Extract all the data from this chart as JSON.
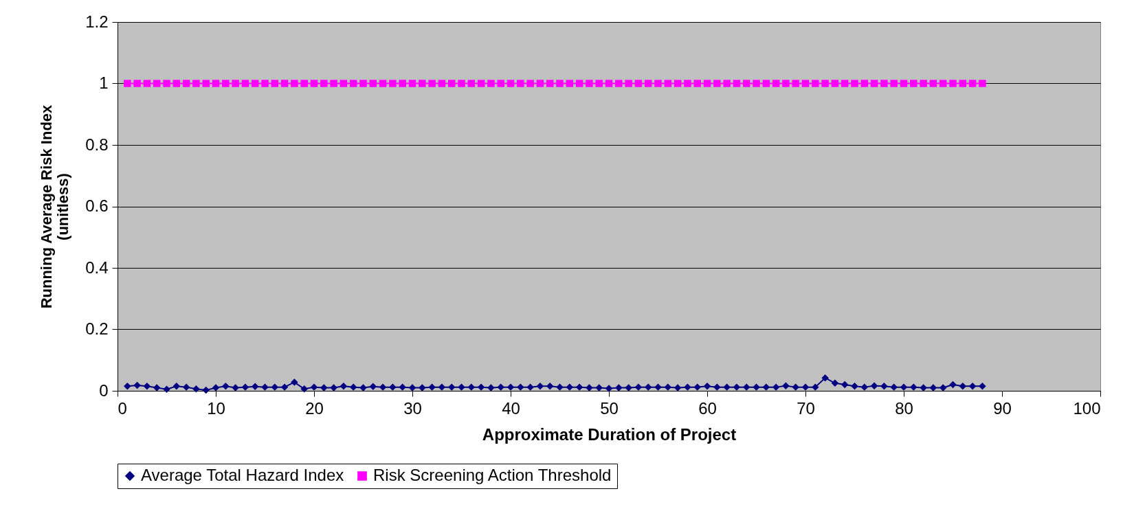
{
  "chart_data": {
    "type": "line",
    "xlabel": "Approximate Duration of Project",
    "ylabel": "Running Average Risk Index (unitless)",
    "xlim": [
      0,
      100
    ],
    "xticks": [
      0,
      10,
      20,
      30,
      40,
      50,
      60,
      70,
      80,
      90,
      100
    ],
    "ylim": [
      0,
      1.2
    ],
    "yticks": [
      0,
      0.2,
      0.4,
      0.6,
      0.8,
      1,
      1.2
    ],
    "grid": "y",
    "legend": "bottom",
    "line_style": "solid",
    "x": [
      1,
      2,
      3,
      4,
      5,
      6,
      7,
      8,
      9,
      10,
      11,
      12,
      13,
      14,
      15,
      16,
      17,
      18,
      19,
      20,
      21,
      22,
      23,
      24,
      25,
      26,
      27,
      28,
      29,
      30,
      31,
      32,
      33,
      34,
      35,
      36,
      37,
      38,
      39,
      40,
      41,
      42,
      43,
      44,
      45,
      46,
      47,
      48,
      49,
      50,
      51,
      52,
      53,
      54,
      55,
      56,
      57,
      58,
      59,
      60,
      61,
      62,
      63,
      64,
      65,
      66,
      67,
      68,
      69,
      70,
      71,
      72,
      73,
      74,
      75,
      76,
      77,
      78,
      79,
      80,
      81,
      82,
      83,
      84,
      85,
      86,
      87,
      88
    ],
    "series": [
      {
        "name": "Average Total Hazard Index",
        "color": "#000080",
        "marker": "diamond",
        "values": [
          0.015,
          0.018,
          0.015,
          0.01,
          0.005,
          0.015,
          0.012,
          0.006,
          0.002,
          0.01,
          0.015,
          0.01,
          0.012,
          0.014,
          0.012,
          0.012,
          0.012,
          0.028,
          0.006,
          0.012,
          0.01,
          0.01,
          0.015,
          0.012,
          0.01,
          0.014,
          0.012,
          0.012,
          0.012,
          0.01,
          0.01,
          0.012,
          0.012,
          0.012,
          0.012,
          0.012,
          0.012,
          0.01,
          0.012,
          0.012,
          0.012,
          0.012,
          0.015,
          0.015,
          0.012,
          0.012,
          0.012,
          0.01,
          0.01,
          0.008,
          0.01,
          0.01,
          0.012,
          0.012,
          0.012,
          0.012,
          0.01,
          0.012,
          0.012,
          0.015,
          0.012,
          0.012,
          0.012,
          0.012,
          0.012,
          0.012,
          0.012,
          0.016,
          0.012,
          0.012,
          0.012,
          0.042,
          0.025,
          0.02,
          0.015,
          0.012,
          0.016,
          0.015,
          0.012,
          0.012,
          0.012,
          0.01,
          0.01,
          0.01,
          0.02,
          0.015,
          0.015,
          0.015
        ]
      },
      {
        "name": "Risk Screening Action Threshold",
        "color": "#ff00ff",
        "marker": "square",
        "values": [
          1,
          1,
          1,
          1,
          1,
          1,
          1,
          1,
          1,
          1,
          1,
          1,
          1,
          1,
          1,
          1,
          1,
          1,
          1,
          1,
          1,
          1,
          1,
          1,
          1,
          1,
          1,
          1,
          1,
          1,
          1,
          1,
          1,
          1,
          1,
          1,
          1,
          1,
          1,
          1,
          1,
          1,
          1,
          1,
          1,
          1,
          1,
          1,
          1,
          1,
          1,
          1,
          1,
          1,
          1,
          1,
          1,
          1,
          1,
          1,
          1,
          1,
          1,
          1,
          1,
          1,
          1,
          1,
          1,
          1,
          1,
          1,
          1,
          1,
          1,
          1,
          1,
          1,
          1,
          1,
          1,
          1,
          1,
          1,
          1,
          1,
          1,
          1
        ]
      }
    ]
  }
}
